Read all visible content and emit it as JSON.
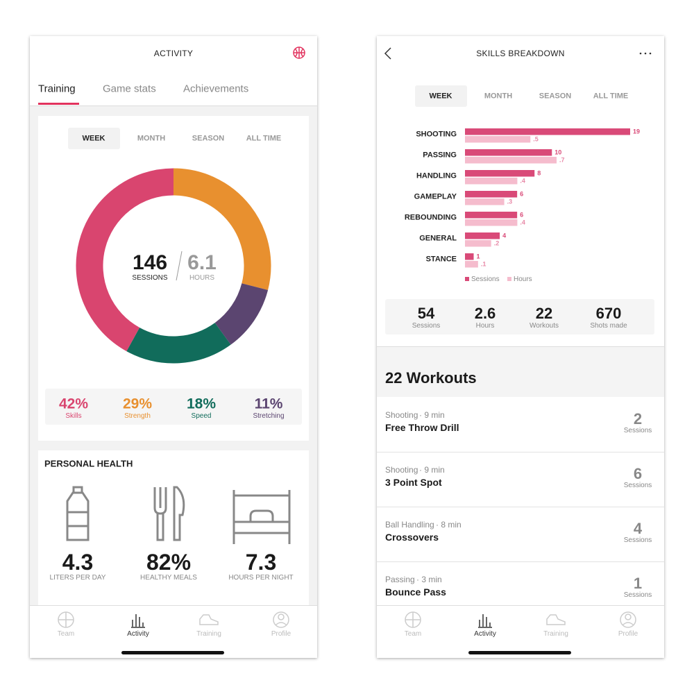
{
  "chart_data": [
    {
      "type": "donut",
      "categories": [
        "Strength",
        "Stretching",
        "Speed",
        "Skills"
      ],
      "values": [
        29,
        11,
        18,
        42
      ],
      "value_labels": [
        "29%",
        "11%",
        "18%",
        "42%"
      ],
      "colors": [
        "#e8902f",
        "#5b4570",
        "#116c5b",
        "#d9456f"
      ]
    },
    {
      "type": "hbar",
      "categories": [
        "SHOOTING",
        "PASSING",
        "HANDLING",
        "GAMEPLAY",
        "REBOUNDING",
        "GENERAL",
        "STANCE"
      ],
      "series": [
        {
          "name": "Sessions",
          "color": "#d94a78",
          "values": [
            19,
            10,
            8,
            6,
            6,
            4,
            1
          ]
        },
        {
          "name": "Hours",
          "color": "#f5bccd",
          "values": [
            0.5,
            0.7,
            0.4,
            0.3,
            0.4,
            0.2,
            0.1
          ],
          "value_labels": [
            ".5",
            ".7",
            ".4",
            ".3",
            ".4",
            ".2",
            ".1"
          ]
        }
      ],
      "legend": "bottom-left"
    }
  ],
  "left": {
    "header": {
      "title": "ACTIVITY"
    },
    "tabs": [
      "Training",
      "Game stats",
      "Achievements"
    ],
    "periods": [
      "WEEK",
      "MONTH",
      "SEASON",
      "ALL TIME"
    ],
    "donut_center": {
      "sessions": 146,
      "sessions_label": "SESSIONS",
      "hours": 6.1,
      "hours_label": "HOURS"
    },
    "health": {
      "title": "PERSONAL HEALTH",
      "items": [
        {
          "value": "4.3",
          "label": "LITERS PER DAY"
        },
        {
          "value": "82%",
          "label": "HEALTHY MEALS"
        },
        {
          "value": "7.3",
          "label": "HOURS PER NIGHT"
        }
      ]
    },
    "nav": [
      "Team",
      "Activity",
      "Training",
      "Profile"
    ]
  },
  "right": {
    "header": {
      "title": "SKILLS BREAKDOWN"
    },
    "periods": [
      "WEEK",
      "MONTH",
      "SEASON",
      "ALL TIME"
    ],
    "stats": [
      {
        "value": 54,
        "label": "Sessions"
      },
      {
        "value": 2.6,
        "label": "Hours"
      },
      {
        "value": 22,
        "label": "Workouts"
      },
      {
        "value": 670,
        "label": "Shots made"
      }
    ],
    "workouts_title": "22 Workouts",
    "workouts": [
      {
        "category": "Shooting",
        "duration": "· 9 min",
        "name": "Free Throw Drill",
        "count": 2,
        "unit": "Sessions"
      },
      {
        "category": "Shooting",
        "duration": "· 9 min",
        "name": "3 Point Spot",
        "count": 6,
        "unit": "Sessions"
      },
      {
        "category": "Ball Handling",
        "duration": "· 8 min",
        "name": "Crossovers",
        "count": 4,
        "unit": "Sessions"
      },
      {
        "category": "Passing",
        "duration": "· 3 min",
        "name": "Bounce Pass",
        "count": 1,
        "unit": "Sessions"
      }
    ],
    "nav": [
      "Team",
      "Activity",
      "Training",
      "Profile"
    ]
  }
}
